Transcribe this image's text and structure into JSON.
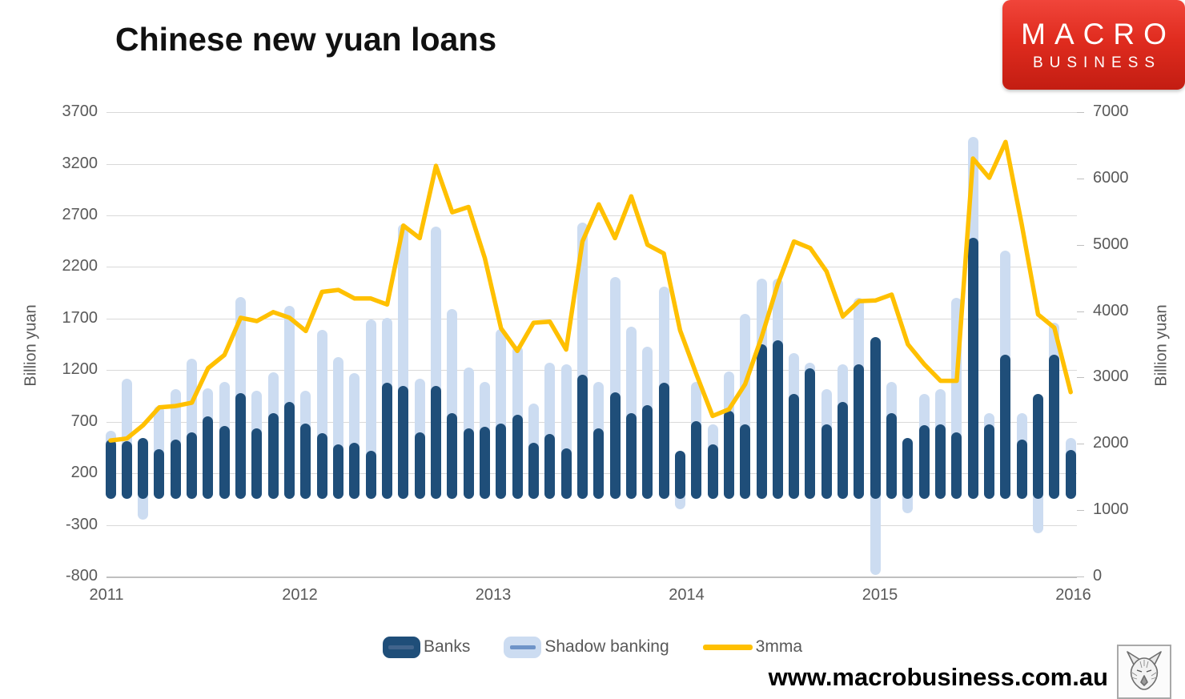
{
  "title": "Chinese new yuan loans",
  "logo": {
    "line1": "MACRO",
    "line2": "BUSINESS"
  },
  "footer": {
    "url": "www.macrobusiness.com.au",
    "wolf_icon": "wolf-head-sketch"
  },
  "legend": [
    {
      "label": "Banks",
      "swatch": "dark-blue-rounded-bar"
    },
    {
      "label": "Shadow banking",
      "swatch": "light-blue-rounded-bar"
    },
    {
      "label": "3mma",
      "swatch": "yellow-line"
    }
  ],
  "colors": {
    "banks": "#1F4E79",
    "shadow_banking": "#CCDCF1",
    "line_3mma": "#FFC000",
    "gridline": "#D9D9D9",
    "axis_border": "#BFBFBF",
    "axis_text": "#595959",
    "legend_mid_dark": "#41648C",
    "legend_mid_light": "#6F94C8",
    "logo_red_top": "#F0453A",
    "logo_red_bottom": "#C31D12"
  },
  "chart_data": {
    "type": "bar",
    "subtype": "stacked-bars-with-line-overlay",
    "title": "Chinese new yuan loans",
    "ylabel_left": "Billion yuan",
    "ylabel_right": "Billion yuan",
    "ylim_left": [
      -800,
      3700
    ],
    "ylim_right": [
      0,
      7000
    ],
    "yticks_left": [
      3700,
      3200,
      2700,
      2200,
      1700,
      1200,
      700,
      200,
      -300,
      -800
    ],
    "yticks_right": [
      7000,
      6000,
      5000,
      4000,
      3000,
      2000,
      1000,
      0
    ],
    "xticks": [
      "2011",
      "2012",
      "2013",
      "2014",
      "2015",
      "2016"
    ],
    "grid": "horizontal",
    "legend_position": "bottom-center",
    "months": [
      "2011-01",
      "2011-02",
      "2011-03",
      "2011-04",
      "2011-05",
      "2011-06",
      "2011-07",
      "2011-08",
      "2011-09",
      "2011-10",
      "2011-11",
      "2011-12",
      "2012-01",
      "2012-02",
      "2012-03",
      "2012-04",
      "2012-05",
      "2012-06",
      "2012-07",
      "2012-08",
      "2012-09",
      "2012-10",
      "2012-11",
      "2012-12",
      "2013-01",
      "2013-02",
      "2013-03",
      "2013-04",
      "2013-05",
      "2013-06",
      "2013-07",
      "2013-08",
      "2013-09",
      "2013-10",
      "2013-11",
      "2013-12",
      "2014-01",
      "2014-02",
      "2014-03",
      "2014-04",
      "2014-05",
      "2014-06",
      "2014-07",
      "2014-08",
      "2014-09",
      "2014-10",
      "2014-11",
      "2014-12",
      "2015-01",
      "2015-02",
      "2015-03",
      "2015-04",
      "2015-05",
      "2015-06",
      "2015-07",
      "2015-08",
      "2015-09",
      "2015-10",
      "2015-11",
      "2015-12"
    ],
    "series": [
      {
        "name": "Banks",
        "axis": "left",
        "values": [
          530,
          510,
          540,
          435,
          525,
          600,
          755,
          660,
          975,
          635,
          780,
          895,
          680,
          590,
          480,
          500,
          420,
          1075,
          1050,
          600,
          1050,
          780,
          635,
          650,
          680,
          765,
          495,
          585,
          440,
          1155,
          635,
          985,
          780,
          865,
          1075,
          420,
          705,
          480,
          810,
          675,
          1450,
          1490,
          970,
          1215,
          675,
          890,
          1255,
          1520,
          780,
          540,
          670,
          675,
          600,
          2480,
          675,
          1350,
          530,
          970,
          1350,
          430
        ]
      },
      {
        "name": "Shadow banking",
        "axis": "left",
        "values": [
          85,
          610,
          -250,
          420,
          490,
          710,
          270,
          430,
          930,
          365,
          400,
          930,
          320,
          1000,
          850,
          670,
          1270,
          635,
          1565,
          515,
          1540,
          1010,
          590,
          440,
          920,
          670,
          385,
          685,
          815,
          1475,
          455,
          1120,
          845,
          565,
          935,
          -150,
          385,
          195,
          375,
          1070,
          640,
          600,
          395,
          60,
          340,
          365,
          645,
          -780,
          310,
          -190,
          300,
          340,
          1300,
          980,
          105,
          1010,
          250,
          -380,
          310,
          110
        ]
      }
    ],
    "line": {
      "name": "3mma",
      "axis": "right",
      "values": [
        2050,
        2080,
        2280,
        2550,
        2570,
        2620,
        3140,
        3340,
        3900,
        3850,
        3985,
        3900,
        3700,
        4290,
        4320,
        4190,
        4190,
        4100,
        5290,
        5100,
        6190,
        5490,
        5570,
        4800,
        3740,
        3400,
        3825,
        3840,
        3420,
        5050,
        5610,
        5100,
        5730,
        5000,
        4870,
        3710,
        3050,
        2420,
        2520,
        2900,
        3600,
        4400,
        5050,
        4950,
        4600,
        3920,
        4150,
        4160,
        4250,
        3500,
        3200,
        2950,
        2950,
        6300,
        6010,
        6550,
        5300,
        3950,
        3750,
        2780
      ]
    }
  }
}
